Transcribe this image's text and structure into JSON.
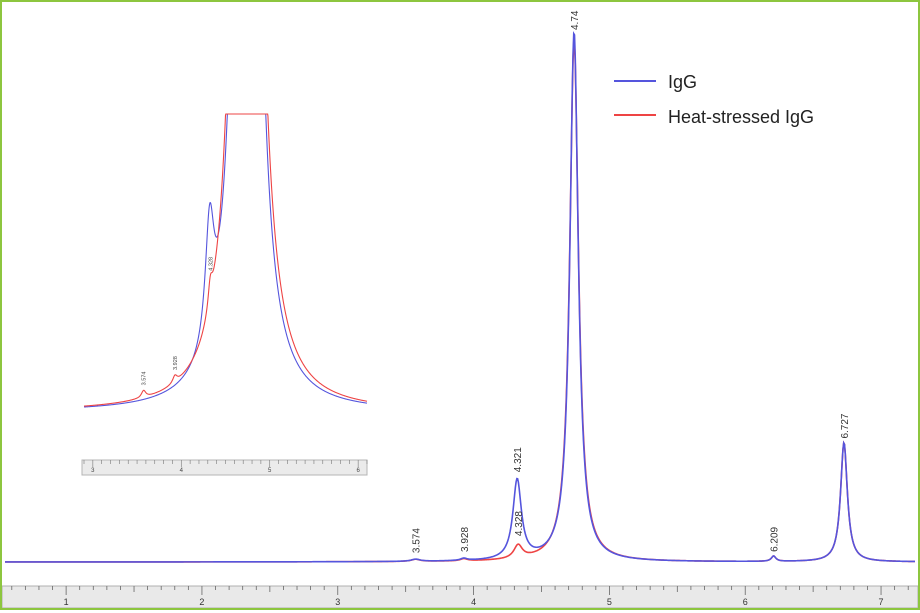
{
  "chart_data": {
    "type": "line",
    "title": "",
    "xlabel": "",
    "ylabel": "",
    "xlim": [
      0.55,
      7.25
    ],
    "ylim": [
      0,
      1.0
    ],
    "grid": false,
    "legend_position": "top-right",
    "x_ticks": [
      "1",
      "2",
      "3",
      "4",
      "5",
      "6",
      "7"
    ],
    "series": [
      {
        "name": "IgG",
        "color": "#5555dd",
        "peaks": [
          {
            "x": 3.574,
            "height": 0.004,
            "width": 0.08
          },
          {
            "x": 3.928,
            "height": 0.004,
            "width": 0.06
          },
          {
            "x": 4.321,
            "height": 0.15,
            "width": 0.075
          },
          {
            "x": 4.74,
            "height": 1.0,
            "width": 0.075
          },
          {
            "x": 6.209,
            "height": 0.01,
            "width": 0.04
          },
          {
            "x": 6.727,
            "height": 0.225,
            "width": 0.06
          }
        ],
        "labeled_peaks": [
          "3.574",
          "3.928",
          "4.321",
          "4.74",
          "6.209",
          "6.727"
        ]
      },
      {
        "name": "Heat-stressed IgG",
        "color": "#ee4444",
        "peaks": [
          {
            "x": 3.574,
            "height": 0.004,
            "width": 0.08
          },
          {
            "x": 3.928,
            "height": 0.004,
            "width": 0.06
          },
          {
            "x": 4.328,
            "height": 0.025,
            "width": 0.075
          },
          {
            "x": 4.74,
            "height": 0.985,
            "width": 0.078
          },
          {
            "x": 6.209,
            "height": 0.01,
            "width": 0.04
          },
          {
            "x": 6.727,
            "height": 0.225,
            "width": 0.06
          }
        ],
        "labeled_peaks": [
          "4.328"
        ]
      }
    ],
    "peak_labels": [
      "3.574",
      "3.928",
      "4.321",
      "4.328",
      "4.74",
      "6.209",
      "6.727"
    ],
    "inset": {
      "xlim": [
        2.9,
        6.1
      ],
      "x_ticks": [
        "3",
        "4",
        "5",
        "6"
      ],
      "peak_labels": [
        "3.574",
        "3.928",
        "4.328"
      ],
      "series": [
        {
          "name": "IgG",
          "peaks": [
            {
              "x": 3.574,
              "height": 0.0,
              "width": 0.08
            },
            {
              "x": 3.928,
              "height": 0.0,
              "width": 0.06
            },
            {
              "x": 4.321,
              "height": 1.2,
              "width": 0.12
            },
            {
              "x": 4.74,
              "height": 20.0,
              "width": 0.18
            }
          ]
        },
        {
          "name": "Heat-stressed IgG",
          "peaks": [
            {
              "x": 3.574,
              "height": 0.07,
              "width": 0.06
            },
            {
              "x": 3.928,
              "height": 0.07,
              "width": 0.06
            },
            {
              "x": 4.328,
              "height": 0.25,
              "width": 0.06
            },
            {
              "x": 4.74,
              "height": 20.0,
              "width": 0.2
            }
          ]
        }
      ]
    }
  }
}
